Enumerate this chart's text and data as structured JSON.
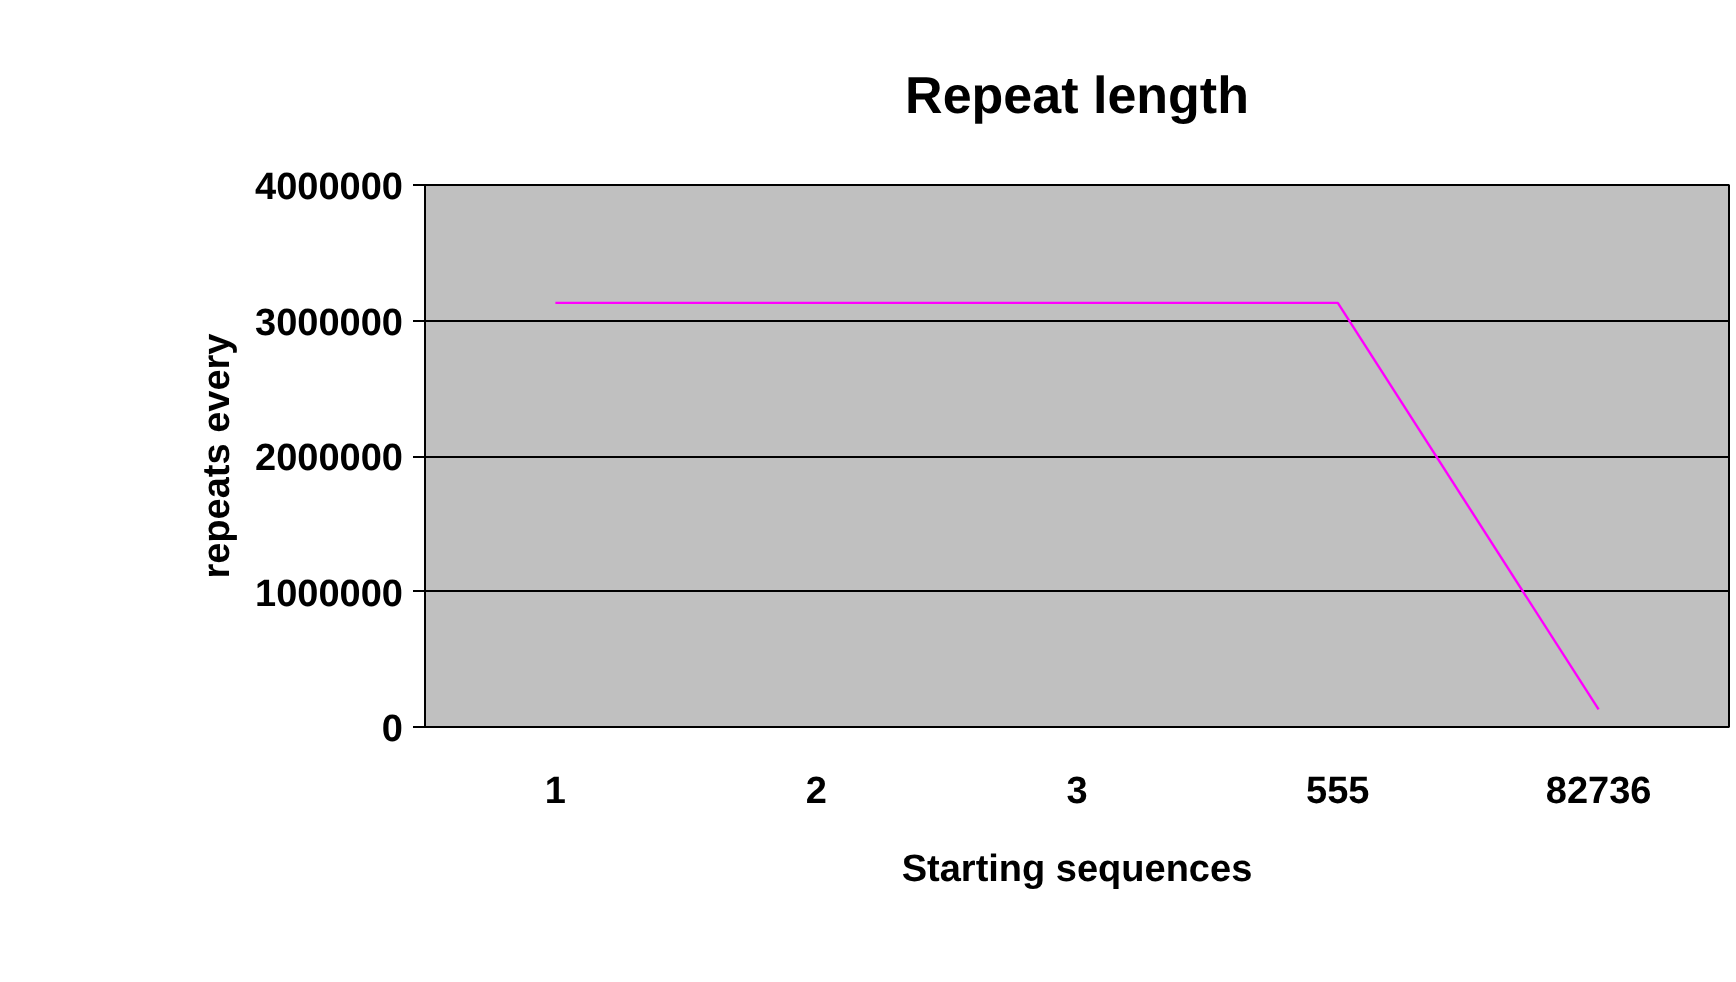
{
  "chart_data": {
    "type": "line",
    "title": "Repeat length",
    "xlabel": "Starting sequences",
    "ylabel": "repeats every",
    "categories": [
      "1",
      "2",
      "3",
      "555",
      "82736"
    ],
    "series": [
      {
        "color": "#ff00ff",
        "values": [
          3130000,
          3130000,
          3130000,
          3130000,
          130000
        ]
      }
    ],
    "ylim": [
      0,
      4000000
    ],
    "yticks": [
      0,
      1000000,
      2000000,
      3000000,
      4000000
    ],
    "grid": "y",
    "marker": "none",
    "line_style": "solid"
  }
}
